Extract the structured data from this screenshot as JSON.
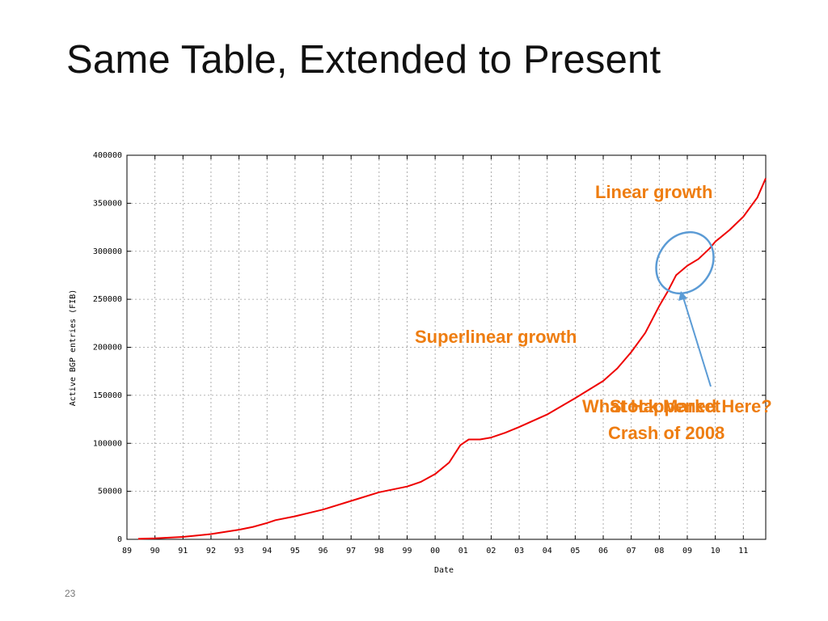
{
  "slide": {
    "title": "Same Table, Extended to Present",
    "number": "23"
  },
  "colors": {
    "series": "#ee0000",
    "annotation": "#ee7d11",
    "highlight": "#5b9bd5",
    "grid": "#999999"
  },
  "chart_data": {
    "type": "line",
    "xlabel": "Date",
    "ylabel": "Active BGP entries (FIB)",
    "xlim": [
      1989,
      2011.8
    ],
    "ylim": [
      0,
      400000
    ],
    "x_ticks": [
      "89",
      "90",
      "91",
      "92",
      "93",
      "94",
      "95",
      "96",
      "97",
      "98",
      "99",
      "00",
      "01",
      "02",
      "03",
      "04",
      "05",
      "06",
      "07",
      "08",
      "09",
      "10",
      "11"
    ],
    "y_ticks": [
      0,
      50000,
      100000,
      150000,
      200000,
      250000,
      300000,
      350000,
      400000
    ],
    "grid": true,
    "series": [
      {
        "x": [
          1989.4,
          1990.0,
          1991.0,
          1992.0,
          1993.0,
          1993.5,
          1994.0,
          1994.3,
          1995.0,
          1996.0,
          1997.0,
          1998.0,
          1999.0,
          1999.5,
          2000.0,
          2000.5,
          2000.9,
          2001.2,
          2001.6,
          2002.0,
          2002.5,
          2003.0,
          2004.0,
          2005.0,
          2006.0,
          2006.5,
          2007.0,
          2007.5,
          2008.0,
          2008.3,
          2008.6,
          2009.0,
          2009.4,
          2009.8,
          2010.0,
          2010.5,
          2011.0,
          2011.5,
          2011.8
        ],
        "values": [
          500,
          1000,
          2500,
          5500,
          10000,
          13000,
          17000,
          20000,
          24000,
          31000,
          40000,
          49000,
          55000,
          60000,
          68000,
          80000,
          98000,
          104000,
          104000,
          106000,
          111000,
          117000,
          130000,
          147000,
          165000,
          178000,
          195000,
          215000,
          243000,
          258000,
          275000,
          285000,
          292000,
          303000,
          310000,
          322000,
          336000,
          356000,
          376000
        ]
      }
    ],
    "annotations": [
      {
        "text": "Linear growth"
      },
      {
        "text": "Superlinear growth"
      },
      {
        "text": "What Happened Here?"
      },
      {
        "text": "Stock Market"
      },
      {
        "text": "Crash of 2008"
      }
    ]
  }
}
